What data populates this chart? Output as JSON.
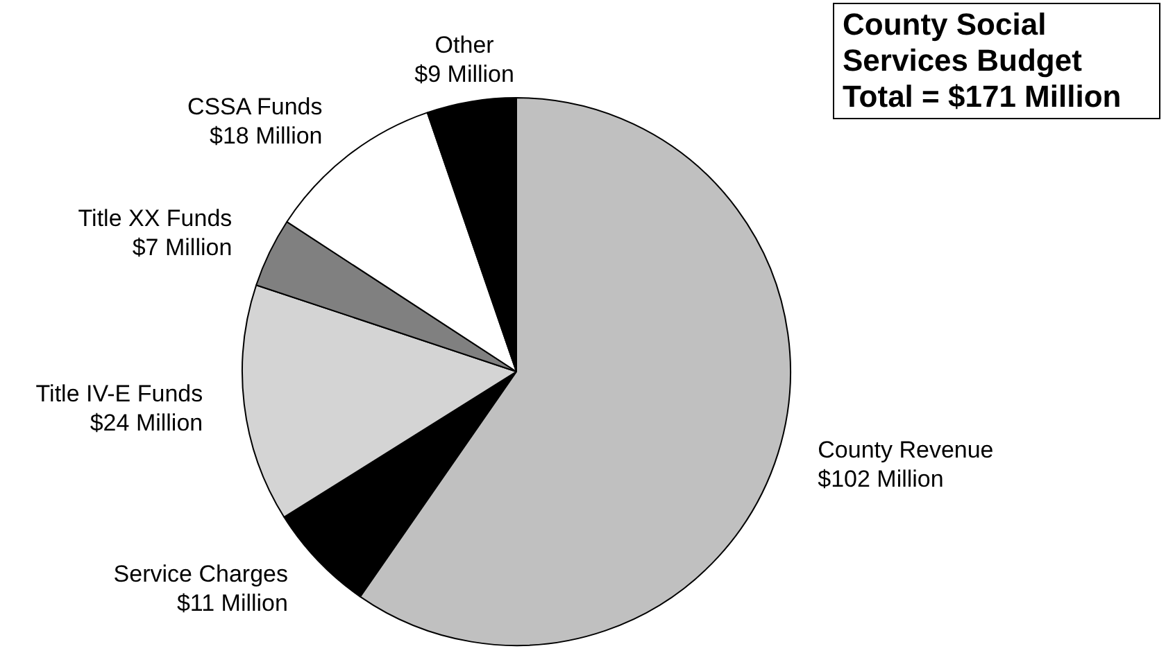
{
  "chart_data": {
    "type": "pie",
    "title": "County Social Services Budget",
    "subtitle": "Total = $171 Million",
    "categories": [
      "County Revenue",
      "Service Charges",
      "Title IV-E Funds",
      "Title XX Funds",
      "CSSA Funds",
      "Other"
    ],
    "values": [
      102,
      11,
      24,
      7,
      18,
      9
    ],
    "value_labels": [
      "$102 Million",
      "$11 Million",
      "$24 Million",
      "$7 Million",
      "$18 Million",
      "$9 Million"
    ],
    "colors": [
      "#c0c0c0",
      "#000000",
      "#d4d4d4",
      "#808080",
      "#ffffff",
      "#000000"
    ],
    "legend": false
  }
}
